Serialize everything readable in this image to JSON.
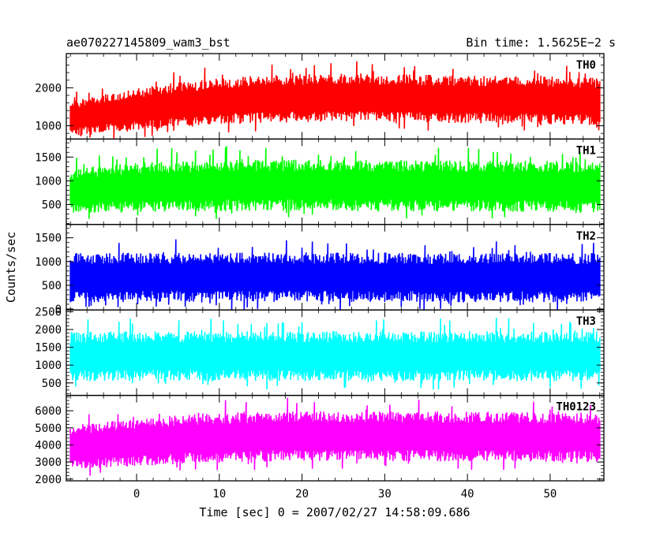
{
  "header": {
    "title": "ae070227145809_wam3_bst",
    "bin_time": "Bin time: 1.5625E−2 s"
  },
  "chart_data": {
    "type": "line",
    "title": "ae070227145809_wam3_bst",
    "subtitle": "Bin time: 1.5625E−2 s",
    "xlabel": "Time [sec] 0 = 2007/02/27 14:58:09.686",
    "ylabel": "Counts/sec",
    "xlim": [
      -8.5,
      56.5
    ],
    "data_xrange": [
      -8,
      56
    ],
    "xticks": [
      0,
      10,
      20,
      30,
      40,
      50
    ],
    "grid": false,
    "panels": [
      {
        "name": "TH0",
        "color": "#ff0000",
        "ylim": [
          650,
          2900
        ],
        "yticks": [
          1000,
          2000
        ],
        "profile_x": [
          -8,
          -6,
          -4,
          -2,
          0,
          2,
          4,
          6,
          8,
          10,
          12,
          14,
          16,
          18,
          20,
          22,
          24,
          26,
          28,
          30,
          32,
          34,
          36,
          38,
          40,
          42,
          44,
          46,
          48,
          50,
          52,
          54,
          56
        ],
        "profile_mean": [
          1180,
          1250,
          1330,
          1370,
          1420,
          1480,
          1530,
          1560,
          1600,
          1640,
          1670,
          1690,
          1710,
          1720,
          1730,
          1730,
          1740,
          1740,
          1730,
          1730,
          1720,
          1720,
          1710,
          1700,
          1700,
          1690,
          1680,
          1680,
          1670,
          1670,
          1660,
          1660,
          1650
        ],
        "profile_spread": [
          450,
          480,
          520,
          540,
          560,
          580,
          590,
          600,
          610,
          620,
          620,
          630,
          630,
          630,
          630,
          630,
          630,
          630,
          630,
          630,
          630,
          630,
          630,
          630,
          630,
          630,
          630,
          630,
          630,
          630,
          630,
          630,
          630
        ]
      },
      {
        "name": "TH1",
        "color": "#00ff00",
        "ylim": [
          80,
          1880
        ],
        "yticks": [
          500,
          1000,
          1500
        ],
        "profile_x": [
          -8,
          -4,
          0,
          4,
          8,
          12,
          16,
          20,
          24,
          28,
          32,
          36,
          40,
          44,
          48,
          52,
          56
        ],
        "profile_mean": [
          780,
          820,
          860,
          880,
          890,
          900,
          905,
          905,
          905,
          900,
          900,
          895,
          890,
          890,
          885,
          880,
          880
        ],
        "profile_spread": [
          480,
          500,
          520,
          530,
          540,
          540,
          540,
          540,
          540,
          540,
          540,
          540,
          540,
          540,
          540,
          540,
          540
        ]
      },
      {
        "name": "TH2",
        "color": "#0000ff",
        "ylim": [
          -20,
          1780
        ],
        "yticks": [
          0,
          500,
          1000,
          1500
        ],
        "profile_x": [
          -8,
          0,
          8,
          16,
          24,
          32,
          40,
          48,
          56
        ],
        "profile_mean": [
          660,
          665,
          670,
          670,
          670,
          665,
          665,
          660,
          660
        ],
        "profile_spread": [
          520,
          520,
          520,
          520,
          520,
          520,
          520,
          520,
          520
        ]
      },
      {
        "name": "TH3",
        "color": "#00ffff",
        "ylim": [
          150,
          2550
        ],
        "yticks": [
          500,
          1000,
          1500,
          2000,
          2500
        ],
        "profile_x": [
          -8,
          0,
          8,
          16,
          24,
          32,
          40,
          48,
          56
        ],
        "profile_mean": [
          1240,
          1250,
          1250,
          1255,
          1255,
          1250,
          1250,
          1245,
          1245
        ],
        "profile_spread": [
          700,
          700,
          700,
          700,
          700,
          700,
          700,
          700,
          700
        ]
      },
      {
        "name": "TH0123",
        "color": "#ff00ff",
        "ylim": [
          1900,
          6900
        ],
        "yticks": [
          2000,
          3000,
          4000,
          5000,
          6000
        ],
        "profile_x": [
          -8,
          -4,
          0,
          4,
          8,
          12,
          16,
          20,
          24,
          28,
          32,
          36,
          40,
          44,
          48,
          52,
          56
        ],
        "profile_mean": [
          3850,
          4000,
          4150,
          4280,
          4380,
          4450,
          4490,
          4510,
          4520,
          4520,
          4510,
          4500,
          4490,
          4480,
          4470,
          4460,
          4450
        ],
        "profile_spread": [
          1300,
          1350,
          1400,
          1430,
          1450,
          1460,
          1460,
          1460,
          1460,
          1460,
          1460,
          1460,
          1460,
          1460,
          1460,
          1460,
          1460
        ]
      }
    ]
  }
}
